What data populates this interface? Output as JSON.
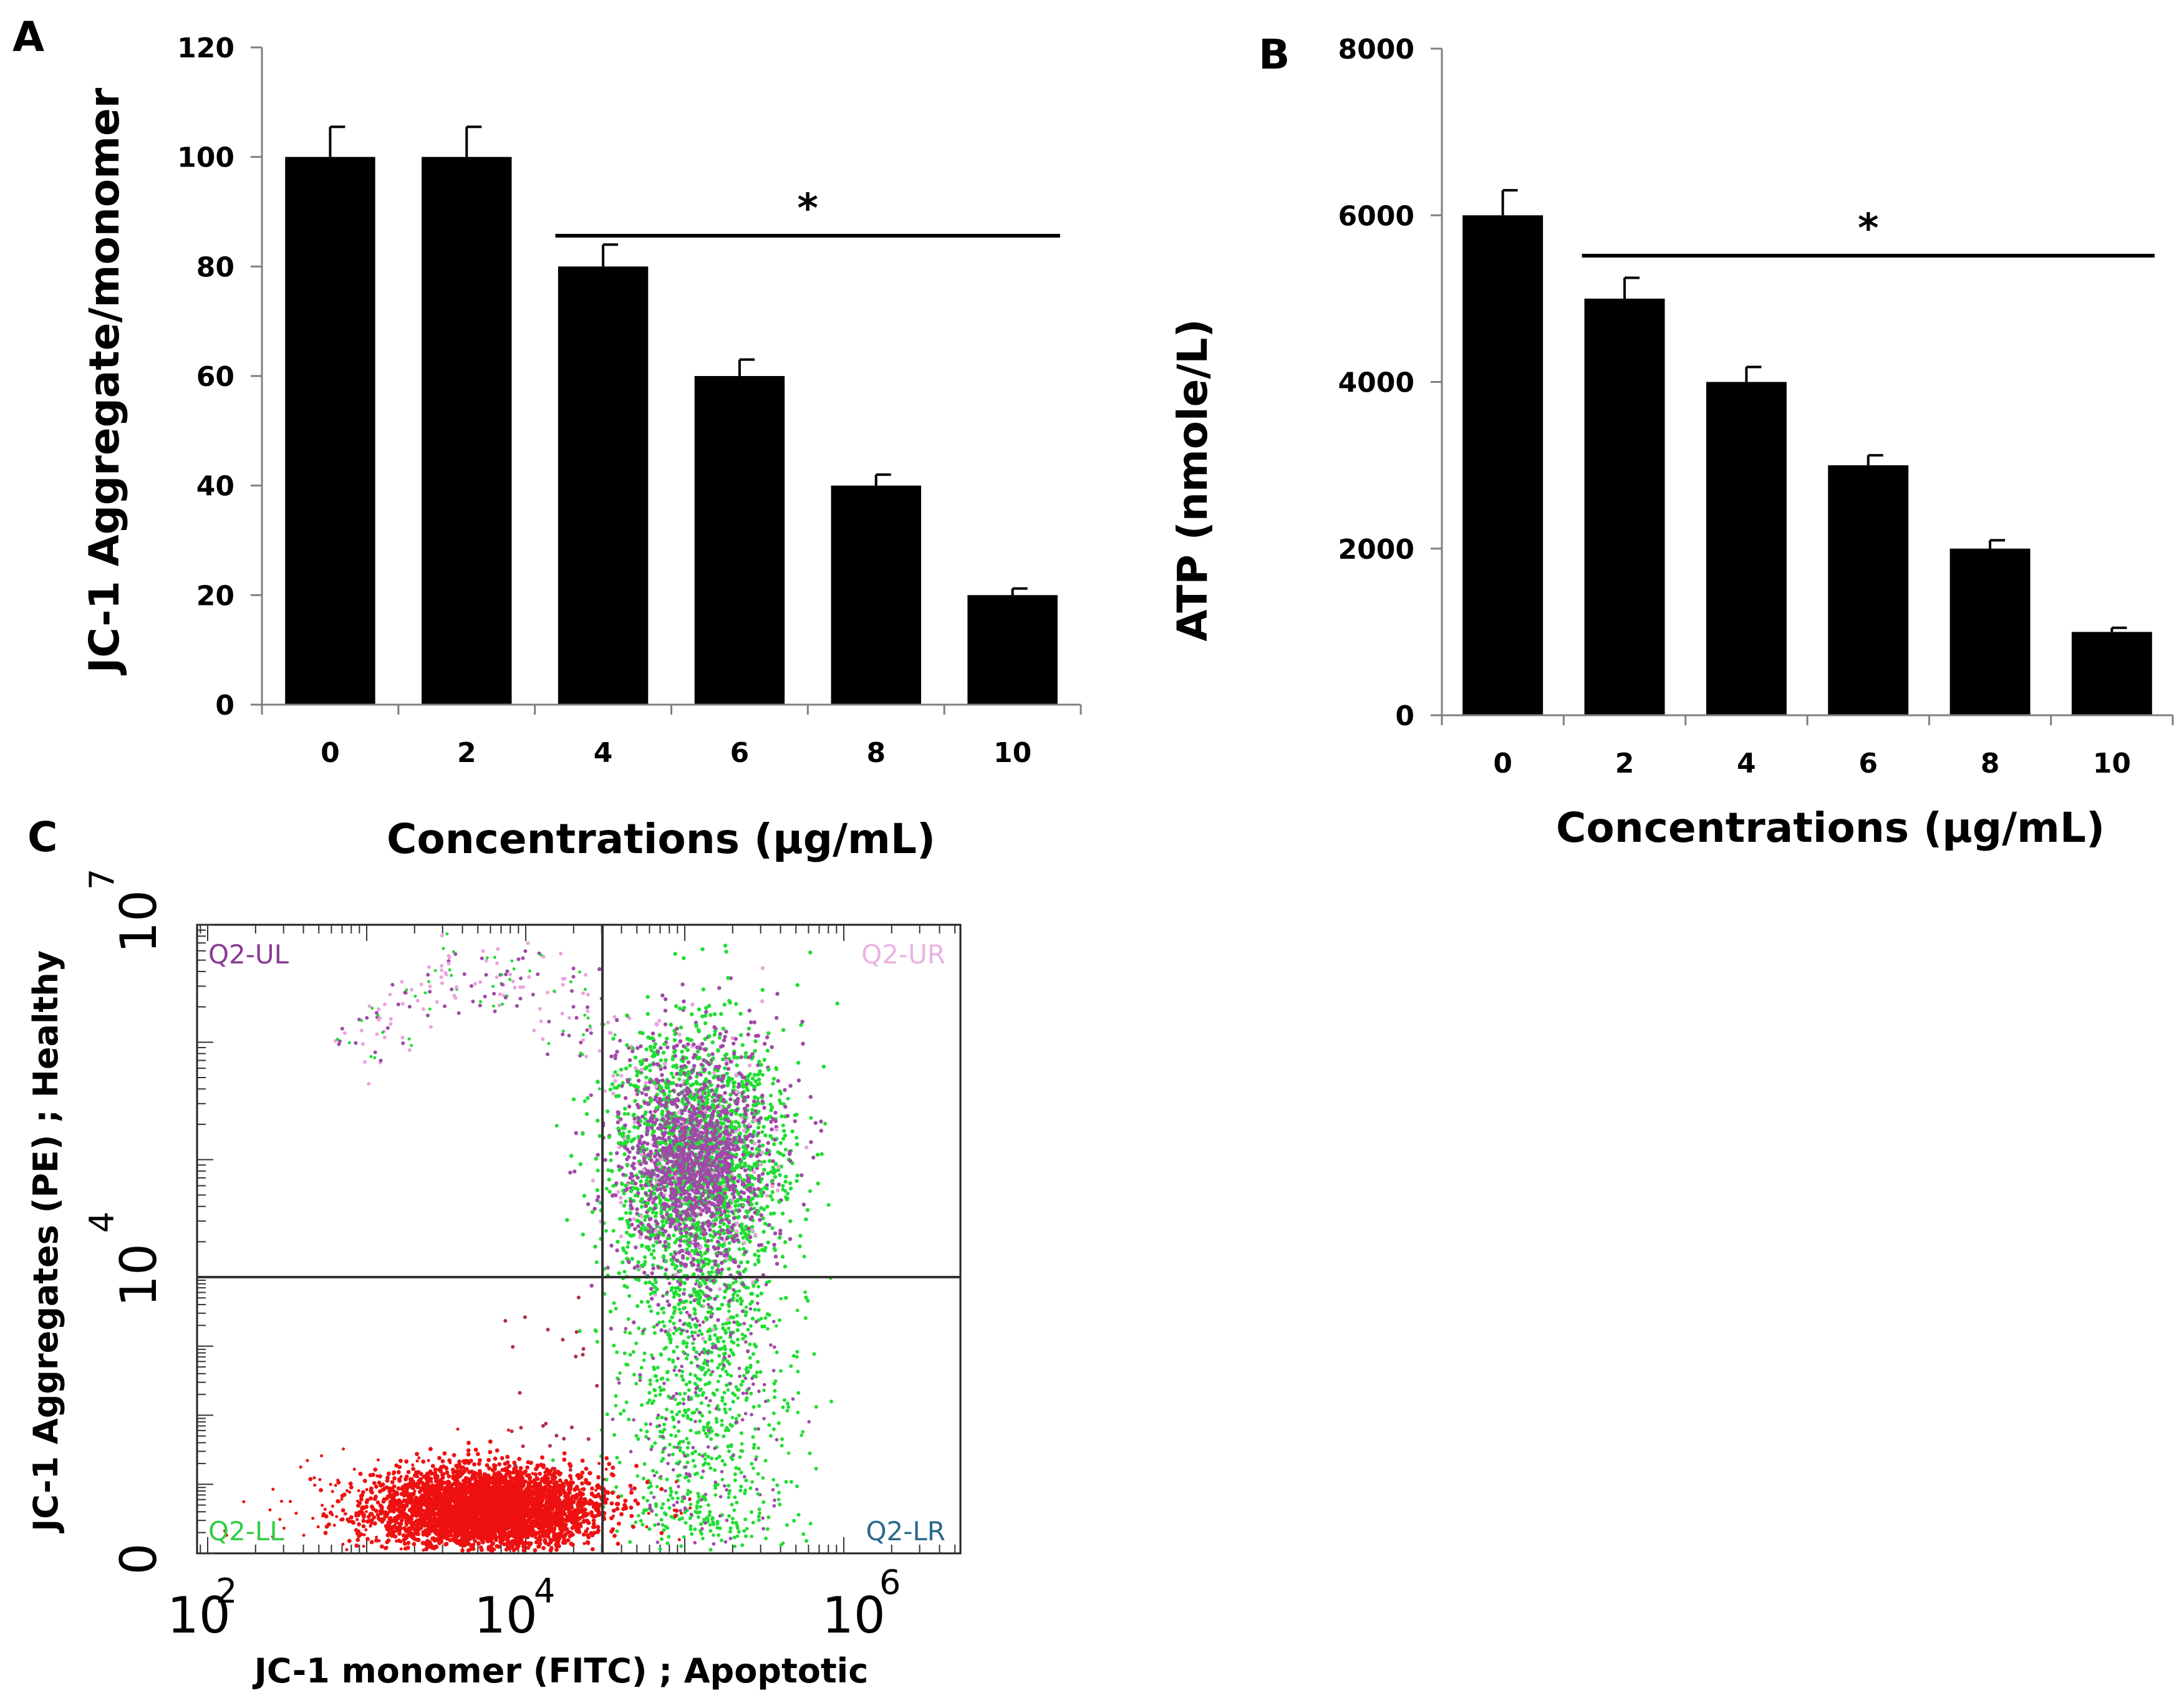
{
  "colors": {
    "bar": "#000000",
    "axis": "#7f7f7f",
    "gate": "#333333",
    "dot_green": "#22dd33",
    "dot_purple": "#a04aa8",
    "dot_red": "#ee1111",
    "dot_pink": "#e9a4df",
    "q_ul": "#8a3a94",
    "q_ur": "#e9b4e4",
    "q_ll": "#33cc44",
    "q_lr": "#2a6a8a"
  },
  "chart_data": [
    {
      "id": "A",
      "type": "bar",
      "panel_label": "A",
      "categories": [
        "0",
        "2",
        "4",
        "6",
        "8",
        "10"
      ],
      "values": [
        100,
        100,
        80,
        60,
        40,
        20
      ],
      "errors": [
        5.5,
        5.5,
        4,
        3,
        2,
        1.2
      ],
      "ylim": [
        0,
        120
      ],
      "yticks": [
        "0",
        "20",
        "40",
        "60",
        "80",
        "100",
        "120"
      ],
      "xlabel": "Concentrations (µg/mL)",
      "ylabel": "JC-1 Aggregate/monomer",
      "significance": {
        "from_category": "4",
        "to_category": "10",
        "label": "*"
      }
    },
    {
      "id": "B",
      "type": "bar",
      "panel_label": "B",
      "categories": [
        "0",
        "2",
        "4",
        "6",
        "8",
        "10"
      ],
      "values": [
        6000,
        5000,
        4000,
        3000,
        2000,
        1000
      ],
      "errors": [
        300,
        250,
        180,
        120,
        100,
        50
      ],
      "ylim": [
        0,
        8000
      ],
      "yticks": [
        "0",
        "2000",
        "4000",
        "6000",
        "8000"
      ],
      "xlabel": "Concentrations (µg/mL)",
      "ylabel": "ATP (nmole/L)",
      "significance": {
        "from_category": "2",
        "to_category": "10",
        "label": "*"
      }
    },
    {
      "id": "C",
      "type": "scatter",
      "panel_label": "C",
      "xlabel": "JC-1 monomer (FITC) ; Apoptotic",
      "ylabel": "JC-1 Aggregates (PE) ; Healthy",
      "x_scale": "log",
      "x_tick_labels": [
        {
          "base": "10",
          "exp": "2"
        },
        {
          "base": "10",
          "exp": "4"
        },
        {
          "base": "10",
          "exp": "6"
        }
      ],
      "y_tick_labels": [
        {
          "base": "0",
          "exp": ""
        },
        {
          "base": "10",
          "exp": "4"
        },
        {
          "base": "10",
          "exp": "7"
        }
      ],
      "gate": {
        "x": 4.5,
        "y": 4.0
      },
      "quadrants": [
        "Q2-UL",
        "Q2-UR",
        "Q2-LL",
        "Q2-LR"
      ],
      "populations": [
        {
          "name": "low aggregates / low monomer",
          "x_center": 3.8,
          "y_center": 0.3,
          "color": "red"
        },
        {
          "name": "high monomer",
          "x_center": 5.3,
          "y_center": 4.9,
          "color": "green+purple"
        },
        {
          "name": "upper-left scatter",
          "x_center": 3.7,
          "y_center": 6.3,
          "color": "pink+purple"
        }
      ]
    }
  ]
}
